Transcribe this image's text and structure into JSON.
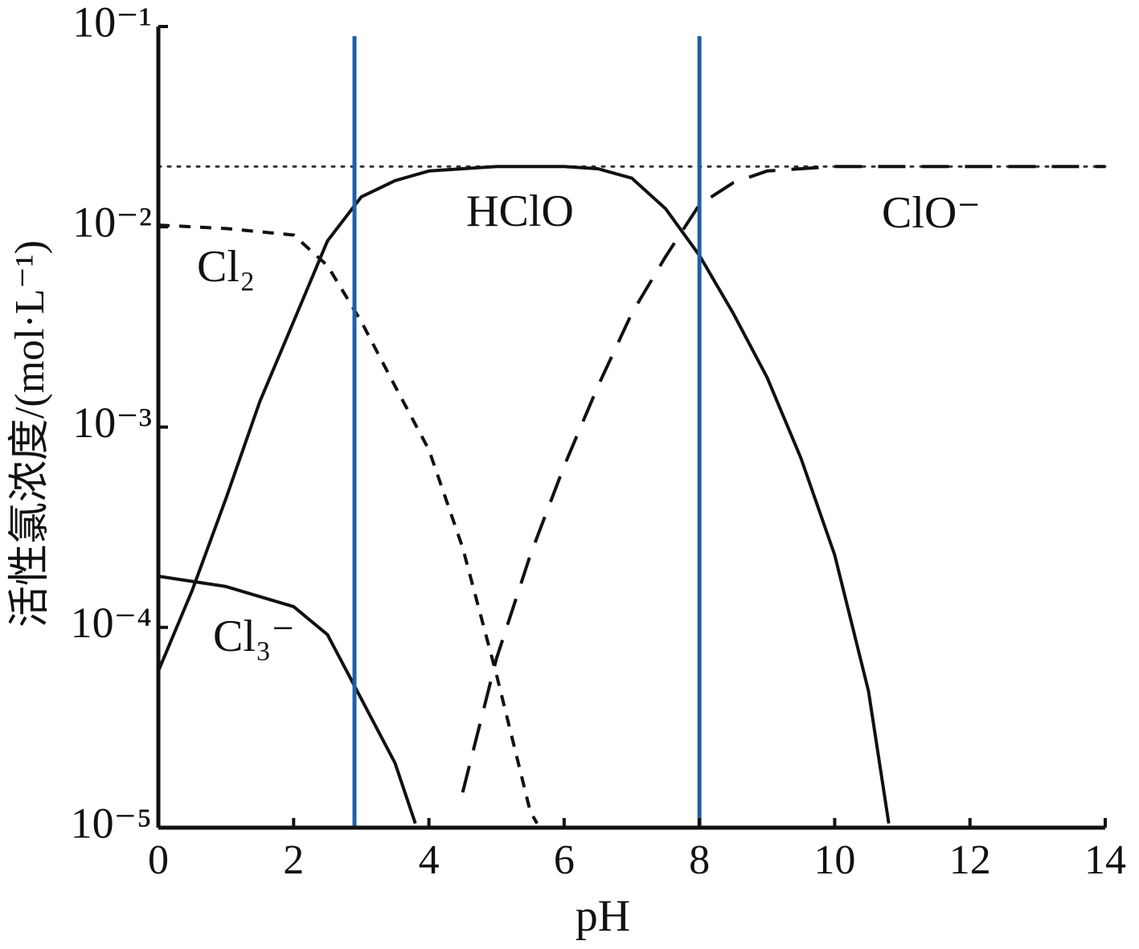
{
  "chart_data": {
    "type": "line",
    "xlabel": "pH",
    "ylabel": "活性氯浓度/(mol·L⁻¹)",
    "xlim": [
      0,
      14
    ],
    "xticks": [
      0,
      2,
      4,
      6,
      8,
      10,
      12,
      14
    ],
    "ylim": [
      1e-05,
      0.1
    ],
    "log_y": true,
    "yticks": [
      {
        "value": 1e-05,
        "label": "10⁻⁵"
      },
      {
        "value": 0.0001,
        "label": "10⁻⁴"
      },
      {
        "value": 0.001,
        "label": "10⁻³"
      },
      {
        "value": 0.01,
        "label": "10⁻²"
      },
      {
        "value": 0.1,
        "label": "10⁻¹"
      }
    ],
    "series": [
      {
        "name": "Cl₂",
        "color": "#111111",
        "dash": "short",
        "x": [
          0,
          1,
          2,
          2.5,
          3,
          3.5,
          4,
          4.5,
          5,
          5.5,
          5.6
        ],
        "values": [
          0.0102,
          0.0098,
          0.0091,
          0.0064,
          0.00337,
          0.0016,
          0.00077,
          0.00025,
          5.8e-05,
          1.2e-05,
          1.05e-05
        ]
      },
      {
        "name": "Cl₃⁻",
        "color": "#111111",
        "dash": "solid",
        "x": [
          0,
          1,
          2,
          2.5,
          3,
          3.5,
          3.8
        ],
        "values": [
          0.00018,
          0.00016,
          0.000127,
          9.2e-05,
          4.4e-05,
          2.1e-05,
          1.05e-05
        ]
      },
      {
        "name": "HClO",
        "color": "#111111",
        "dash": "solid",
        "x": [
          0,
          0.5,
          1,
          1.5,
          2,
          2.5,
          3,
          3.5,
          4,
          5,
          6,
          6.5,
          7,
          7.5,
          8,
          8.5,
          9,
          9.5,
          10,
          10.5,
          10.8
        ],
        "values": [
          6.05e-05,
          0.000153,
          0.00044,
          0.00134,
          0.00337,
          0.0085,
          0.0141,
          0.017,
          0.019,
          0.02,
          0.02,
          0.0195,
          0.0175,
          0.0123,
          0.0072,
          0.0037,
          0.00177,
          0.0007,
          0.00023,
          4.8e-05,
          1.05e-05
        ]
      },
      {
        "name": "ClO⁻",
        "color": "#111111",
        "dash": "long",
        "x": [
          4.5,
          5,
          5.5,
          6,
          6.5,
          7,
          7.5,
          8,
          8.5,
          9,
          10,
          14
        ],
        "values": [
          1.5e-05,
          7e-05,
          0.00023,
          0.00064,
          0.0016,
          0.0037,
          0.0071,
          0.0129,
          0.0166,
          0.019,
          0.02,
          0.02
        ]
      }
    ],
    "vlines": [
      {
        "x": 2.9,
        "color": "#1f5fa6"
      },
      {
        "x": 8,
        "color": "#1f5fa6"
      }
    ],
    "hlines": [
      {
        "y": 0.02,
        "color": "#333333"
      }
    ]
  }
}
